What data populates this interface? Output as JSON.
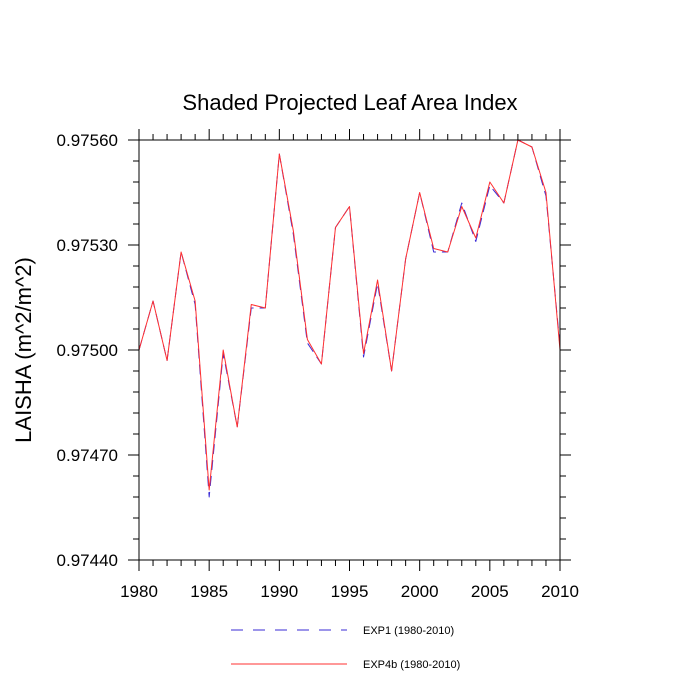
{
  "chart_data": {
    "type": "line",
    "title": "Shaded Projected Leaf Area Index",
    "xlabel": "",
    "ylabel": "LAISHA  (m^2/m^2)",
    "xlim": [
      1980,
      2010
    ],
    "ylim": [
      0.9744,
      0.9756
    ],
    "x_tick_labels": [
      "1980",
      "1985",
      "1990",
      "1995",
      "2000",
      "2005",
      "2010"
    ],
    "y_tick_labels": [
      "0.97440",
      "0.97470",
      "0.97500",
      "0.97530",
      "0.97560"
    ],
    "x": [
      1980,
      1981,
      1982,
      1983,
      1984,
      1985,
      1986,
      1987,
      1988,
      1989,
      1990,
      1991,
      1992,
      1993,
      1994,
      1995,
      1996,
      1997,
      1998,
      1999,
      2000,
      2001,
      2002,
      2003,
      2004,
      2005,
      2006,
      2007,
      2008,
      2009,
      2010
    ],
    "series": [
      {
        "name": "EXP1 (1980-2010)",
        "color": "#3a2bd6",
        "dash": "dashed",
        "values": [
          0.975,
          0.97514,
          0.97497,
          0.97528,
          0.97513,
          0.97458,
          0.97499,
          0.97478,
          0.97512,
          0.97512,
          0.97556,
          0.97533,
          0.97502,
          0.97496,
          0.97535,
          0.97541,
          0.97498,
          0.97519,
          0.97494,
          0.97526,
          0.97545,
          0.97528,
          0.97528,
          0.97542,
          0.97531,
          0.97547,
          0.97542,
          0.9756,
          0.97558,
          0.97544,
          0.97501
        ]
      },
      {
        "name": "EXP4b (1980-2010)",
        "color": "#ff3030",
        "dash": "solid",
        "values": [
          0.975,
          0.97514,
          0.97497,
          0.97528,
          0.97514,
          0.9746,
          0.975,
          0.97478,
          0.97513,
          0.97512,
          0.97556,
          0.97534,
          0.97503,
          0.97496,
          0.97535,
          0.97541,
          0.97499,
          0.9752,
          0.97494,
          0.97526,
          0.97545,
          0.97529,
          0.97528,
          0.97541,
          0.97532,
          0.97548,
          0.97542,
          0.9756,
          0.97558,
          0.97545,
          0.975
        ]
      }
    ],
    "legend_position": "bottom"
  }
}
